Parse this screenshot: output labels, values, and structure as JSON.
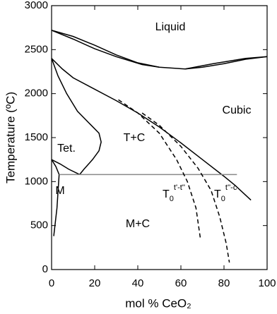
{
  "chart_data": {
    "type": "line",
    "xlabel": "mol % CeO₂",
    "ylabel": "Temperature (ºC)",
    "xlim": [
      0,
      100
    ],
    "ylim": [
      0,
      3000
    ],
    "xticks": [
      0,
      20,
      40,
      60,
      80,
      100
    ],
    "yticks": [
      0,
      500,
      1000,
      1500,
      2000,
      2500,
      3000
    ],
    "series": [
      {
        "color": "#000000",
        "line_style": "solid",
        "x": [
          0,
          10,
          20,
          30,
          40,
          50,
          62,
          70,
          80,
          90,
          100
        ],
        "values": [
          2720,
          2650,
          2550,
          2440,
          2350,
          2300,
          2280,
          2300,
          2340,
          2390,
          2420
        ]
      },
      {
        "color": "#000000",
        "line_style": "solid",
        "x": [
          0,
          10,
          20,
          30,
          42,
          50
        ],
        "values": [
          2720,
          2620,
          2510,
          2420,
          2330,
          2300
        ]
      },
      {
        "color": "#000000",
        "line_style": "solid",
        "x": [
          62,
          75,
          90,
          100
        ],
        "values": [
          2280,
          2340,
          2400,
          2420
        ]
      },
      {
        "color": "#000000",
        "line_style": "solid",
        "x": [
          0,
          5,
          10,
          20,
          30,
          40,
          50,
          60,
          70,
          80,
          85,
          92.5
        ],
        "values": [
          2400,
          2280,
          2180,
          2050,
          1920,
          1780,
          1620,
          1440,
          1250,
          1060,
          960,
          790
        ]
      },
      {
        "color": "#000000",
        "line_style": "solid",
        "x": [
          0,
          3,
          7,
          12,
          18,
          22,
          23,
          22,
          19,
          15,
          13
        ],
        "values": [
          2400,
          2200,
          2000,
          1800,
          1650,
          1550,
          1450,
          1350,
          1250,
          1140,
          1080
        ]
      },
      {
        "color": "#000000",
        "line_style": "solid",
        "x": [
          0,
          4,
          8,
          13
        ],
        "values": [
          1250,
          1200,
          1140,
          1080
        ]
      },
      {
        "color": "#000000",
        "line_style": "solid",
        "x": [
          0,
          2,
          3.5,
          2.5,
          1
        ],
        "values": [
          1250,
          1170,
          1080,
          700,
          380
        ]
      },
      {
        "color": "#888888",
        "line_style": "solid",
        "x": [
          3.5,
          86
        ],
        "values": [
          1080,
          1080
        ]
      },
      {
        "color": "#000000",
        "line_style": "dashed",
        "x": [
          31,
          40,
          50,
          58,
          63,
          67,
          69
        ],
        "values": [
          1930,
          1780,
          1550,
          1250,
          1000,
          700,
          360
        ]
      },
      {
        "color": "#000000",
        "line_style": "dashed",
        "x": [
          42,
          50,
          60,
          68,
          74,
          78,
          81,
          82.5
        ],
        "values": [
          1780,
          1640,
          1400,
          1150,
          900,
          600,
          300,
          80
        ]
      }
    ],
    "annotations": [
      {
        "text": "Liquid"
      },
      {
        "text": "Cubic"
      },
      {
        "text": "Tet."
      },
      {
        "text": "T+C"
      },
      {
        "text": "M"
      },
      {
        "text": "M+C"
      },
      {
        "text": "T",
        "sub": "0",
        "sup": "t'-t''"
      },
      {
        "text": "T",
        "sub": "0",
        "sup": "t''-c"
      }
    ]
  }
}
